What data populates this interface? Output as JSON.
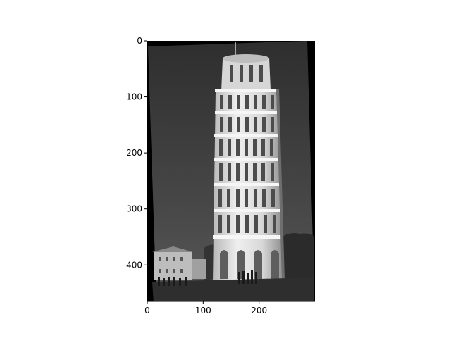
{
  "figure": {
    "background": "#ffffff",
    "image_description_colors": {
      "sky": "#3f3f3f",
      "tower_light": "#e8e8e8",
      "tower_shadow": "#6a6a6a",
      "ground": "#2a2a2a",
      "border": "#000000"
    }
  },
  "axes": {
    "x_range": [
      0,
      300
    ],
    "y_range": [
      0,
      465
    ],
    "y_inverted": true,
    "x_ticks": [
      {
        "value": 0,
        "label": "0"
      },
      {
        "value": 100,
        "label": "100"
      },
      {
        "value": 200,
        "label": "200"
      }
    ],
    "y_ticks": [
      {
        "value": 0,
        "label": "0"
      },
      {
        "value": 100,
        "label": "100"
      },
      {
        "value": 200,
        "label": "200"
      },
      {
        "value": 300,
        "label": "300"
      },
      {
        "value": 400,
        "label": "400"
      }
    ]
  }
}
